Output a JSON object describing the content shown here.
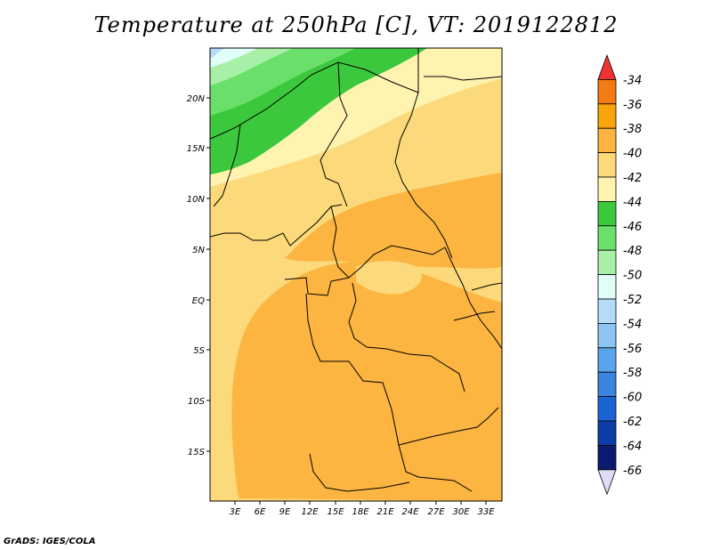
{
  "title": "Temperature at 250hPa [C], VT: 2019122812",
  "footer": "GrADS: IGES/COLA",
  "axes": {
    "lat_labels": [
      "20N",
      "15N",
      "10N",
      "5N",
      "EQ",
      "5S",
      "10S",
      "15S"
    ],
    "lon_labels": [
      "3E",
      "6E",
      "9E",
      "12E",
      "15E",
      "18E",
      "21E",
      "24E",
      "27E",
      "30E",
      "33E"
    ]
  },
  "colorbar": {
    "labels": [
      "-34",
      "-36",
      "-38",
      "-40",
      "-42",
      "-44",
      "-46",
      "-48",
      "-50",
      "-52",
      "-54",
      "-56",
      "-58",
      "-60",
      "-62",
      "-64",
      "-66"
    ],
    "colors": [
      "#ee3333",
      "#f47a14",
      "#f8a40a",
      "#fbb540",
      "#fcd97a",
      "#fff3b0",
      "#3cc83c",
      "#6ae06a",
      "#a8f0a8",
      "#e0fff8",
      "#b4dcf8",
      "#8cc4f4",
      "#5aa4ec",
      "#3a84e0",
      "#1c64d4",
      "#0c3ea8",
      "#0a1c70",
      "#dcdcf4"
    ]
  }
}
